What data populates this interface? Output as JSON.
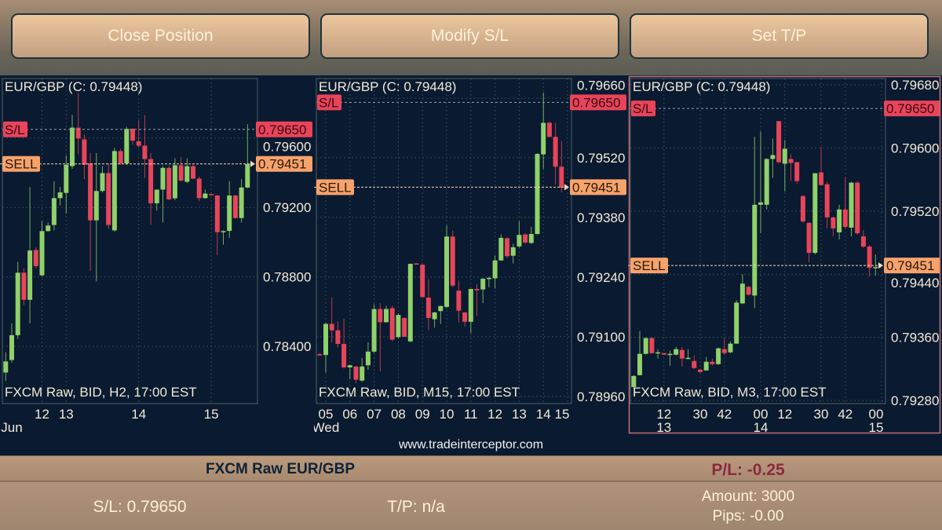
{
  "toolbar": {
    "close_position": "Close Position",
    "modify_sl": "Modify S/L",
    "set_tp": "Set T/P"
  },
  "colors": {
    "bull": "#8fd16a",
    "bear": "#e8445a",
    "background": "#0a1a30",
    "sl_badge": "#e8445a",
    "sell_badge": "#f6a26d",
    "selected_border": "#c0707a"
  },
  "website": "www.tradeinterceptor.com",
  "position": {
    "instrument": "FXCM Raw EUR/GBP",
    "pl": "P/L: -0.25",
    "sl": "S/L: 0.79650",
    "tp": "T/P: n/a",
    "amount": "Amount: 3000",
    "pips": "Pips: -0.00"
  },
  "chart_data": [
    {
      "type": "candlestick",
      "title": "EUR/GBP (C: 0.79448)",
      "footer": "FXCM Raw, BID, H2, 17:00 EST",
      "sl_label": "S/L",
      "sl_price": "0.79650",
      "sell_label": "SELL",
      "sell_price": "0.79451",
      "ylim": [
        0.7807,
        0.79943
      ],
      "yticks": [
        "0.79600",
        "0.79200",
        "0.78800",
        "0.78400"
      ],
      "xticks": [
        {
          "label": "12",
          "at": 6
        },
        {
          "label": "13",
          "at": 10,
          "sub": ""
        },
        {
          "label": "14",
          "at": 22
        },
        {
          "label": "15",
          "at": 34
        }
      ],
      "xsub": [
        {
          "label": "Jun",
          "at": 1
        }
      ],
      "selected": false,
      "ohlc": [
        [
          0.78249,
          0.78366,
          0.782,
          0.78313
        ],
        [
          0.78321,
          0.78532,
          0.78306,
          0.78464
        ],
        [
          0.78464,
          0.78887,
          0.78442,
          0.78824
        ],
        [
          0.78824,
          0.7885,
          0.78638,
          0.78668
        ],
        [
          0.78668,
          0.79318,
          0.78532,
          0.78952
        ],
        [
          0.78955,
          0.7897,
          0.7885,
          0.78862
        ],
        [
          0.78809,
          0.79121,
          0.78804,
          0.79064
        ],
        [
          0.79064,
          0.79114,
          0.79061,
          0.79096
        ],
        [
          0.79099,
          0.79351,
          0.79068,
          0.79254
        ],
        [
          0.79254,
          0.79318,
          0.79212,
          0.79287
        ],
        [
          0.79284,
          0.79499,
          0.79167,
          0.79446
        ],
        [
          0.79438,
          0.79733,
          0.79423,
          0.7966
        ],
        [
          0.7966,
          0.79861,
          0.79506,
          0.79597
        ],
        [
          0.79592,
          0.7962,
          0.79363,
          0.79446
        ],
        [
          0.79454,
          0.79514,
          0.78834,
          0.79126
        ],
        [
          0.79126,
          0.79514,
          0.78774,
          0.79295
        ],
        [
          0.79295,
          0.79438,
          0.79287,
          0.79398
        ],
        [
          0.79398,
          0.79454,
          0.79076,
          0.79099
        ],
        [
          0.79068,
          0.79544,
          0.79061,
          0.79525
        ],
        [
          0.79525,
          0.79537,
          0.79446,
          0.79454
        ],
        [
          0.79454,
          0.79665,
          0.79446,
          0.79653
        ],
        [
          0.79653,
          0.79657,
          0.79562,
          0.79585
        ],
        [
          0.79582,
          0.79703,
          0.79544,
          0.79556
        ],
        [
          0.79556,
          0.79733,
          0.7937,
          0.79479
        ],
        [
          0.79479,
          0.79514,
          0.79099,
          0.79224
        ],
        [
          0.79224,
          0.79303,
          0.79182,
          0.79303
        ],
        [
          0.79303,
          0.79438,
          0.79114,
          0.79428
        ],
        [
          0.79428,
          0.79438,
          0.79242,
          0.79247
        ],
        [
          0.79253,
          0.79484,
          0.79242,
          0.79443
        ],
        [
          0.79443,
          0.79491,
          0.79348,
          0.79355
        ],
        [
          0.79348,
          0.79484,
          0.7934,
          0.79438
        ],
        [
          0.79438,
          0.79446,
          0.79363,
          0.79366
        ],
        [
          0.79366,
          0.79378,
          0.79235,
          0.79254
        ],
        [
          0.79254,
          0.79303,
          0.7925,
          0.7928
        ],
        [
          0.79277,
          0.7928,
          0.79272,
          0.79275
        ],
        [
          0.79269,
          0.79272,
          0.78925,
          0.79058
        ],
        [
          0.79058,
          0.79068,
          0.78985,
          0.79064
        ],
        [
          0.79065,
          0.79351,
          0.79023,
          0.79269
        ],
        [
          0.79269,
          0.79272,
          0.79136,
          0.79139
        ],
        [
          0.79139,
          0.79363,
          0.79114,
          0.79315
        ],
        [
          0.79315,
          0.7968,
          0.7931,
          0.79451
        ]
      ]
    },
    {
      "type": "candlestick",
      "title": "EUR/GBP (C: 0.79448)",
      "footer": "FXCM Raw, BID, M15, 17:00 EST",
      "sl_label": "S/L",
      "sl_price": "0.79650",
      "sell_label": "SELL",
      "sell_price": "0.79451",
      "ylim": [
        0.78943,
        0.79706
      ],
      "yticks": [
        "0.79660",
        "0.79520",
        "0.79380",
        "0.79240",
        "0.79100",
        "0.78960"
      ],
      "xticks": [
        {
          "label": "05",
          "at": 1
        },
        {
          "label": "06",
          "at": 5
        },
        {
          "label": "07",
          "at": 9
        },
        {
          "label": "08",
          "at": 13
        },
        {
          "label": "09",
          "at": 17
        },
        {
          "label": "10",
          "at": 21
        },
        {
          "label": "11",
          "at": 25
        },
        {
          "label": "12",
          "at": 29
        },
        {
          "label": "13",
          "at": 33
        },
        {
          "label": "14",
          "at": 37
        },
        {
          "label": "15",
          "at": 41
        }
      ],
      "xsub": [
        {
          "label": "Wed",
          "at": 1
        }
      ],
      "selected": false,
      "ohlc": [
        [
          0.79059,
          0.79062,
          0.79055,
          0.79056
        ],
        [
          0.79057,
          0.79133,
          0.79016,
          0.7913
        ],
        [
          0.7913,
          0.79192,
          0.79087,
          0.79115
        ],
        [
          0.79115,
          0.79136,
          0.79075,
          0.79083
        ],
        [
          0.79083,
          0.79142,
          0.79025,
          0.79028
        ],
        [
          0.79028,
          0.79034,
          0.79,
          0.79033
        ],
        [
          0.7903,
          0.79031,
          0.78991,
          0.78999
        ],
        [
          0.78997,
          0.7905,
          0.78994,
          0.7903
        ],
        [
          0.79033,
          0.79087,
          0.79022,
          0.79065
        ],
        [
          0.79065,
          0.79176,
          0.79062,
          0.79165
        ],
        [
          0.79165,
          0.79179,
          0.79019,
          0.79134
        ],
        [
          0.79134,
          0.79173,
          0.79133,
          0.79165
        ],
        [
          0.79167,
          0.79173,
          0.7909,
          0.79093
        ],
        [
          0.79099,
          0.79155,
          0.79096,
          0.79151
        ],
        [
          0.79144,
          0.79145,
          0.79099,
          0.791
        ],
        [
          0.79089,
          0.79272,
          0.79087,
          0.79271
        ],
        [
          0.79272,
          0.79273,
          0.7927,
          0.79271
        ],
        [
          0.79269,
          0.79272,
          0.79192,
          0.79193
        ],
        [
          0.79192,
          0.79235,
          0.79115,
          0.79144
        ],
        [
          0.79141,
          0.79158,
          0.79121,
          0.79157
        ],
        [
          0.7916,
          0.79173,
          0.7913,
          0.79172
        ],
        [
          0.7917,
          0.79361,
          0.79167,
          0.79335
        ],
        [
          0.79335,
          0.79349,
          0.79216,
          0.7922
        ],
        [
          0.79208,
          0.79232,
          0.79133,
          0.79161
        ],
        [
          0.79157,
          0.79158,
          0.79124,
          0.79135
        ],
        [
          0.79135,
          0.79213,
          0.79108,
          0.79212
        ],
        [
          0.79212,
          0.79223,
          0.79149,
          0.79209
        ],
        [
          0.79211,
          0.79238,
          0.79179,
          0.79236
        ],
        [
          0.79236,
          0.79241,
          0.79216,
          0.79238
        ],
        [
          0.79237,
          0.7929,
          0.79213,
          0.79279
        ],
        [
          0.79279,
          0.7934,
          0.79278,
          0.79332
        ],
        [
          0.79331,
          0.79334,
          0.79284,
          0.79289
        ],
        [
          0.7929,
          0.79318,
          0.79272,
          0.7931
        ],
        [
          0.79312,
          0.79371,
          0.79309,
          0.79339
        ],
        [
          0.7934,
          0.79343,
          0.79318,
          0.79321
        ],
        [
          0.7932,
          0.79358,
          0.79318,
          0.79341
        ],
        [
          0.79341,
          0.79531,
          0.7934,
          0.79529
        ],
        [
          0.79528,
          0.79673,
          0.79494,
          0.79602
        ],
        [
          0.79602,
          0.79605,
          0.79568,
          0.79569
        ],
        [
          0.79569,
          0.79602,
          0.79457,
          0.79499
        ],
        [
          0.79499,
          0.79559,
          0.79439,
          0.7945
        ]
      ]
    },
    {
      "type": "candlestick",
      "title": "EUR/GBP (C: 0.79448)",
      "footer": "FXCM Raw, BID, M3, 17:00 EST",
      "sl_label": "S/L",
      "sl_price": "0.79650",
      "sell_label": "SELL",
      "sell_price": "0.79451",
      "ylim": [
        0.79276,
        0.79688
      ],
      "yticks": [
        "0.79680",
        "0.79600",
        "0.79520",
        "0.79440",
        "0.79360",
        "0.79280"
      ],
      "xticks": [
        {
          "label": "12",
          "at": 5
        },
        {
          "label": "30",
          "at": 11
        },
        {
          "label": "42",
          "at": 15
        },
        {
          "label": "00",
          "at": 21
        },
        {
          "label": "12",
          "at": 25
        },
        {
          "label": "30",
          "at": 31
        },
        {
          "label": "42",
          "at": 35
        },
        {
          "label": "00",
          "at": 41
        }
      ],
      "xsub": [
        {
          "label": "13",
          "at": 5
        },
        {
          "label": "14",
          "at": 21
        },
        {
          "label": "15",
          "at": 41
        }
      ],
      "selected": true,
      "ohlc": [
        [
          0.79297,
          0.79312,
          0.79295,
          0.79311
        ],
        [
          0.79312,
          0.79368,
          0.79312,
          0.79339
        ],
        [
          0.79339,
          0.7936,
          0.79338,
          0.79359
        ],
        [
          0.79359,
          0.7936,
          0.79339,
          0.7934
        ],
        [
          0.79341,
          0.79345,
          0.79333,
          0.79341
        ],
        [
          0.7934,
          0.7934,
          0.79338,
          0.79338
        ],
        [
          0.79339,
          0.79343,
          0.79324,
          0.79339
        ],
        [
          0.79338,
          0.79348,
          0.79337,
          0.79345
        ],
        [
          0.79344,
          0.79348,
          0.79323,
          0.79333
        ],
        [
          0.79334,
          0.79345,
          0.79332,
          0.79334
        ],
        [
          0.7933,
          0.79337,
          0.7932,
          0.79321
        ],
        [
          0.79319,
          0.7932,
          0.79315,
          0.79316
        ],
        [
          0.79318,
          0.79335,
          0.79318,
          0.79329
        ],
        [
          0.79329,
          0.79333,
          0.79324,
          0.79326
        ],
        [
          0.79326,
          0.79347,
          0.79325,
          0.79346
        ],
        [
          0.79345,
          0.79359,
          0.79338,
          0.7934
        ],
        [
          0.79341,
          0.79355,
          0.7934,
          0.79352
        ],
        [
          0.79352,
          0.79407,
          0.79352,
          0.79404
        ],
        [
          0.79403,
          0.7944,
          0.79402,
          0.79428
        ],
        [
          0.79424,
          0.79425,
          0.79413,
          0.79414
        ],
        [
          0.79413,
          0.79614,
          0.79397,
          0.79528
        ],
        [
          0.79528,
          0.79621,
          0.79492,
          0.79531
        ],
        [
          0.79528,
          0.79587,
          0.79522,
          0.79586
        ],
        [
          0.79586,
          0.79612,
          0.79562,
          0.79591
        ],
        [
          0.79634,
          0.79634,
          0.7958,
          0.79582
        ],
        [
          0.7958,
          0.7961,
          0.79545,
          0.79599
        ],
        [
          0.79586,
          0.79592,
          0.79558,
          0.79581
        ],
        [
          0.79582,
          0.79582,
          0.79555,
          0.79558
        ],
        [
          0.79539,
          0.7954,
          0.79505,
          0.79507
        ],
        [
          0.79505,
          0.79506,
          0.79455,
          0.79467
        ],
        [
          0.79467,
          0.79568,
          0.79465,
          0.79568
        ],
        [
          0.79569,
          0.79601,
          0.79552,
          0.79553
        ],
        [
          0.79554,
          0.79557,
          0.79498,
          0.79512
        ],
        [
          0.79512,
          0.79513,
          0.79488,
          0.79498
        ],
        [
          0.79493,
          0.79528,
          0.79484,
          0.79522
        ],
        [
          0.79522,
          0.79563,
          0.79498,
          0.795
        ],
        [
          0.79499,
          0.79557,
          0.79488,
          0.79556
        ],
        [
          0.79556,
          0.79558,
          0.7949,
          0.79492
        ],
        [
          0.79488,
          0.79496,
          0.79473,
          0.79475
        ],
        [
          0.79475,
          0.79477,
          0.79437,
          0.79448
        ],
        [
          0.79448,
          0.79465,
          0.79438,
          0.79449
        ]
      ]
    }
  ]
}
